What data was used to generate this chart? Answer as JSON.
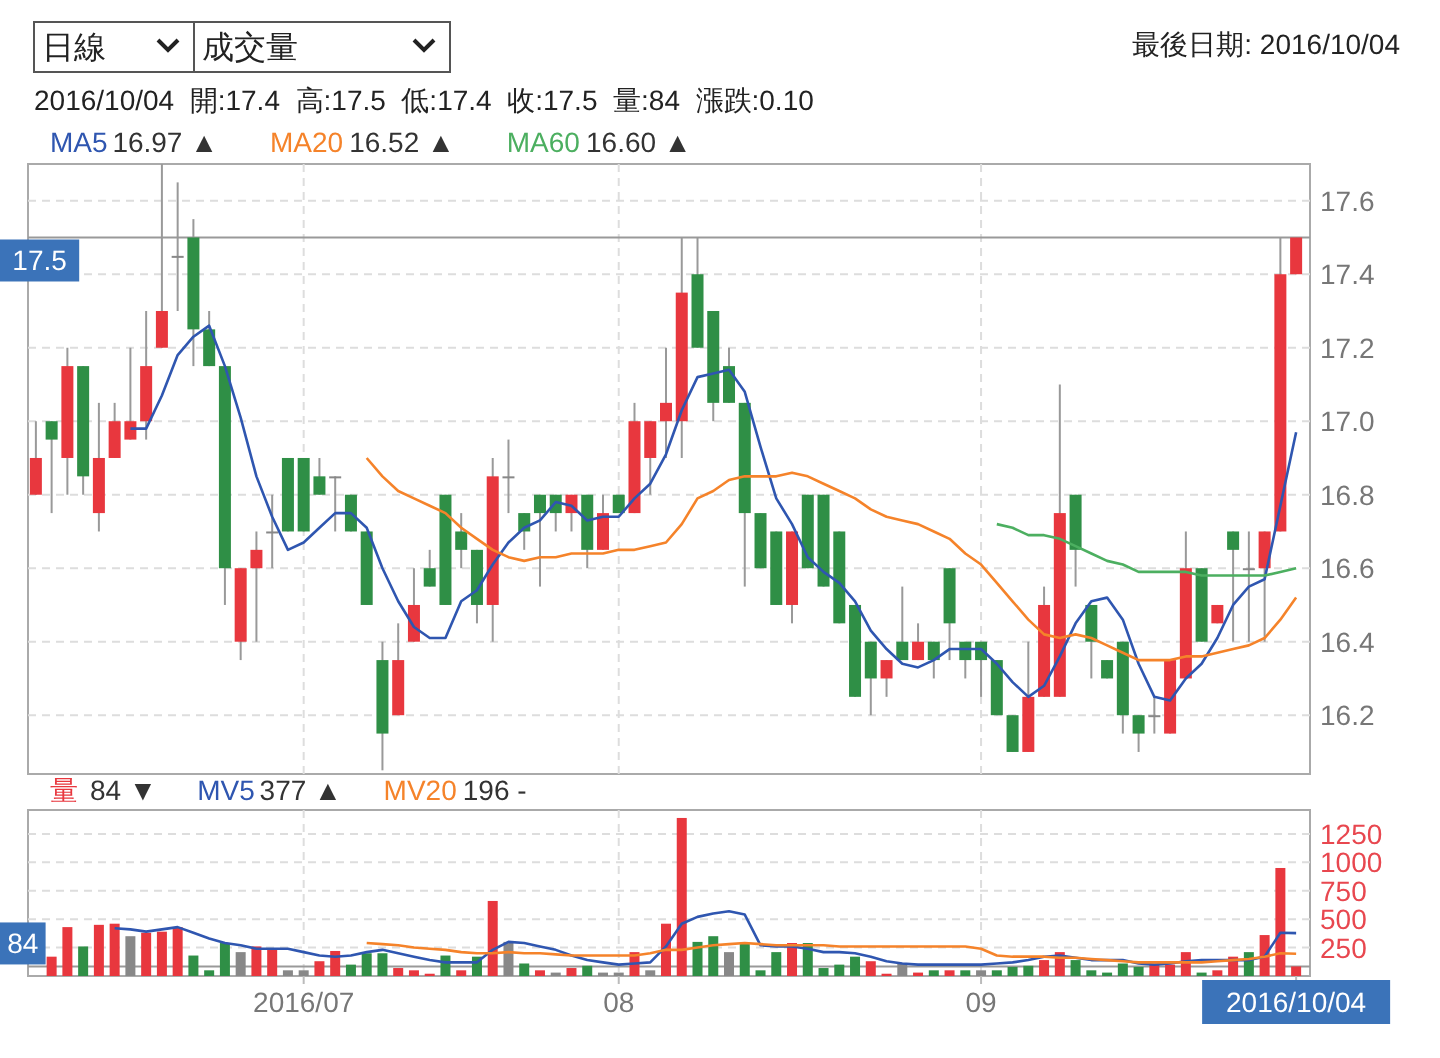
{
  "chart_data": [
    {
      "type": "candlestick",
      "categories": [
        null,
        null,
        null,
        null,
        null,
        null,
        null,
        null,
        null,
        null,
        null,
        null,
        null,
        null,
        null,
        null,
        null,
        "2016/07",
        null,
        null,
        null,
        null,
        null,
        null,
        null,
        null,
        null,
        null,
        null,
        null,
        null,
        null,
        null,
        null,
        null,
        null,
        null,
        "08",
        null,
        null,
        null,
        null,
        null,
        null,
        null,
        null,
        null,
        null,
        null,
        null,
        null,
        null,
        null,
        null,
        null,
        null,
        null,
        null,
        null,
        null,
        "09",
        null,
        null,
        null,
        null,
        null,
        null,
        null,
        null,
        null,
        null,
        null,
        null,
        null,
        null,
        null,
        null,
        null,
        null,
        null,
        "2016/10/04"
      ],
      "ohlc": [
        [
          16.8,
          17.0,
          16.8,
          16.9
        ],
        [
          17.0,
          17.0,
          16.75,
          16.95
        ],
        [
          16.9,
          17.2,
          16.8,
          17.15
        ],
        [
          17.15,
          17.15,
          16.8,
          16.85
        ],
        [
          16.75,
          17.05,
          16.7,
          16.9
        ],
        [
          16.9,
          17.05,
          16.9,
          17.0
        ],
        [
          16.95,
          17.2,
          16.95,
          17.0
        ],
        [
          17.0,
          17.3,
          16.95,
          17.15
        ],
        [
          17.2,
          17.7,
          17.2,
          17.3
        ],
        [
          17.45,
          17.65,
          17.3,
          17.45
        ],
        [
          17.5,
          17.55,
          17.15,
          17.25
        ],
        [
          17.25,
          17.3,
          17.15,
          17.15
        ],
        [
          17.15,
          17.15,
          16.5,
          16.6
        ],
        [
          16.4,
          16.6,
          16.35,
          16.6
        ],
        [
          16.6,
          16.7,
          16.4,
          16.65
        ],
        [
          16.7,
          16.8,
          16.6,
          16.7
        ],
        [
          16.9,
          16.9,
          16.7,
          16.7
        ],
        [
          16.9,
          16.9,
          16.7,
          16.7
        ],
        [
          16.85,
          16.9,
          16.8,
          16.8
        ],
        [
          16.85,
          16.85,
          16.7,
          16.85
        ],
        [
          16.8,
          16.8,
          16.7,
          16.7
        ],
        [
          16.7,
          16.7,
          16.5,
          16.5
        ],
        [
          16.35,
          16.4,
          16.05,
          16.15
        ],
        [
          16.2,
          16.45,
          16.2,
          16.35
        ],
        [
          16.4,
          16.6,
          16.4,
          16.5
        ],
        [
          16.6,
          16.65,
          16.55,
          16.55
        ],
        [
          16.8,
          16.8,
          16.5,
          16.5
        ],
        [
          16.7,
          16.75,
          16.6,
          16.65
        ],
        [
          16.65,
          16.65,
          16.45,
          16.5
        ],
        [
          16.5,
          16.9,
          16.4,
          16.85
        ],
        [
          16.85,
          16.95,
          16.75,
          16.85
        ],
        [
          16.75,
          16.75,
          16.65,
          16.7
        ],
        [
          16.8,
          16.8,
          16.55,
          16.75
        ],
        [
          16.8,
          16.8,
          16.7,
          16.75
        ],
        [
          16.75,
          16.8,
          16.7,
          16.8
        ],
        [
          16.8,
          16.8,
          16.6,
          16.65
        ],
        [
          16.65,
          16.8,
          16.65,
          16.75
        ],
        [
          16.8,
          16.8,
          16.75,
          16.75
        ],
        [
          16.75,
          17.05,
          16.75,
          17.0
        ],
        [
          16.9,
          17.0,
          16.8,
          17.0
        ],
        [
          17.0,
          17.2,
          16.9,
          17.05
        ],
        [
          17.0,
          17.5,
          16.9,
          17.35
        ],
        [
          17.4,
          17.5,
          17.2,
          17.2
        ],
        [
          17.3,
          17.3,
          17.0,
          17.05
        ],
        [
          17.15,
          17.2,
          17.05,
          17.05
        ],
        [
          17.05,
          17.05,
          16.55,
          16.75
        ],
        [
          16.75,
          16.75,
          16.6,
          16.6
        ],
        [
          16.7,
          16.7,
          16.5,
          16.5
        ],
        [
          16.5,
          16.7,
          16.45,
          16.7
        ],
        [
          16.8,
          16.8,
          16.6,
          16.6
        ],
        [
          16.8,
          16.8,
          16.55,
          16.55
        ],
        [
          16.7,
          16.7,
          16.45,
          16.45
        ],
        [
          16.5,
          16.5,
          16.25,
          16.25
        ],
        [
          16.4,
          16.4,
          16.2,
          16.3
        ],
        [
          16.3,
          16.35,
          16.25,
          16.35
        ],
        [
          16.4,
          16.55,
          16.35,
          16.35
        ],
        [
          16.35,
          16.45,
          16.35,
          16.4
        ],
        [
          16.4,
          16.4,
          16.3,
          16.35
        ],
        [
          16.6,
          16.6,
          16.35,
          16.45
        ],
        [
          16.4,
          16.4,
          16.3,
          16.35
        ],
        [
          16.4,
          16.4,
          16.25,
          16.35
        ],
        [
          16.35,
          16.35,
          16.2,
          16.2
        ],
        [
          16.2,
          16.2,
          16.1,
          16.1
        ],
        [
          16.1,
          16.4,
          16.1,
          16.25
        ],
        [
          16.25,
          16.55,
          16.25,
          16.5
        ],
        [
          16.25,
          17.1,
          16.25,
          16.75
        ],
        [
          16.8,
          16.8,
          16.55,
          16.65
        ],
        [
          16.5,
          16.5,
          16.3,
          16.4
        ],
        [
          16.35,
          16.35,
          16.3,
          16.3
        ],
        [
          16.4,
          16.4,
          16.15,
          16.2
        ],
        [
          16.2,
          16.2,
          16.1,
          16.15
        ],
        [
          16.2,
          16.25,
          16.15,
          16.2
        ],
        [
          16.15,
          16.35,
          16.15,
          16.35
        ],
        [
          16.3,
          16.7,
          16.3,
          16.6
        ],
        [
          16.6,
          16.6,
          16.4,
          16.4
        ],
        [
          16.45,
          16.5,
          16.45,
          16.5
        ],
        [
          16.7,
          16.7,
          16.4,
          16.65
        ],
        [
          16.6,
          16.7,
          16.4,
          16.6
        ],
        [
          16.6,
          16.7,
          16.4,
          16.7
        ],
        [
          16.7,
          17.5,
          16.7,
          17.4
        ],
        [
          17.4,
          17.5,
          17.4,
          17.5
        ]
      ],
      "colors": [
        "#e8373e",
        "#2f8f46",
        "#e8373e",
        "#2f8f46",
        "#e8373e",
        "#e8373e",
        "#e8373e",
        "#e8373e",
        "#e8373e",
        "#888888",
        "#2f8f46",
        "#2f8f46",
        "#2f8f46",
        "#e8373e",
        "#e8373e",
        "#888888",
        "#2f8f46",
        "#2f8f46",
        "#2f8f46",
        "#888888",
        "#2f8f46",
        "#2f8f46",
        "#2f8f46",
        "#e8373e",
        "#e8373e",
        "#2f8f46",
        "#2f8f46",
        "#2f8f46",
        "#2f8f46",
        "#e8373e",
        "#888888",
        "#2f8f46",
        "#2f8f46",
        "#2f8f46",
        "#e8373e",
        "#2f8f46",
        "#e8373e",
        "#2f8f46",
        "#e8373e",
        "#e8373e",
        "#e8373e",
        "#e8373e",
        "#2f8f46",
        "#2f8f46",
        "#2f8f46",
        "#2f8f46",
        "#2f8f46",
        "#2f8f46",
        "#e8373e",
        "#2f8f46",
        "#2f8f46",
        "#2f8f46",
        "#2f8f46",
        "#2f8f46",
        "#e8373e",
        "#2f8f46",
        "#e8373e",
        "#2f8f46",
        "#2f8f46",
        "#2f8f46",
        "#2f8f46",
        "#2f8f46",
        "#2f8f46",
        "#e8373e",
        "#e8373e",
        "#e8373e",
        "#2f8f46",
        "#2f8f46",
        "#2f8f46",
        "#2f8f46",
        "#2f8f46",
        "#888888",
        "#e8373e",
        "#e8373e",
        "#2f8f46",
        "#e8373e",
        "#2f8f46",
        "#888888",
        "#e8373e",
        "#e8373e",
        "#e8373e"
      ],
      "series": [
        {
          "name": "MA5",
          "type": "line",
          "color": "#2f56b0",
          "values": [
            null,
            null,
            null,
            null,
            null,
            null,
            16.98,
            16.98,
            17.07,
            17.18,
            17.23,
            17.26,
            17.15,
            17.01,
            16.85,
            16.74,
            16.65,
            16.67,
            16.71,
            16.75,
            16.75,
            16.71,
            16.6,
            16.51,
            16.44,
            16.41,
            16.41,
            16.51,
            16.54,
            16.61,
            16.67,
            16.71,
            16.73,
            16.78,
            16.77,
            16.73,
            16.74,
            16.74,
            16.79,
            16.83,
            16.91,
            17.03,
            17.12,
            17.13,
            17.14,
            17.08,
            16.93,
            16.79,
            16.72,
            16.63,
            16.59,
            16.56,
            16.51,
            16.43,
            16.38,
            16.34,
            16.33,
            16.35,
            16.38,
            16.38,
            16.38,
            16.34,
            16.29,
            16.25,
            16.28,
            16.36,
            16.45,
            16.51,
            16.52,
            16.46,
            16.34,
            16.25,
            16.24,
            16.3,
            16.34,
            16.41,
            16.5,
            16.55,
            16.57,
            16.77,
            16.97
          ]
        },
        {
          "name": "MA20",
          "type": "line",
          "color": "#f5832a",
          "values": [
            null,
            null,
            null,
            null,
            null,
            null,
            null,
            null,
            null,
            null,
            null,
            null,
            null,
            null,
            null,
            null,
            null,
            null,
            null,
            null,
            null,
            16.9,
            16.85,
            16.81,
            16.79,
            16.77,
            16.75,
            16.71,
            16.68,
            16.65,
            16.63,
            16.62,
            16.63,
            16.63,
            16.64,
            16.64,
            16.64,
            16.65,
            16.65,
            16.66,
            16.67,
            16.72,
            16.79,
            16.81,
            16.84,
            16.85,
            16.85,
            16.85,
            16.86,
            16.85,
            16.83,
            16.81,
            16.79,
            16.76,
            16.74,
            16.73,
            16.72,
            16.7,
            16.68,
            16.64,
            16.61,
            16.56,
            16.51,
            16.46,
            16.42,
            16.41,
            16.42,
            16.41,
            16.39,
            16.37,
            16.35,
            16.35,
            16.35,
            16.36,
            16.36,
            16.37,
            16.38,
            16.39,
            16.41,
            16.46,
            16.52
          ]
        },
        {
          "name": "MA60",
          "type": "line",
          "color": "#4caf60",
          "values": [
            null,
            null,
            null,
            null,
            null,
            null,
            null,
            null,
            null,
            null,
            null,
            null,
            null,
            null,
            null,
            null,
            null,
            null,
            null,
            null,
            null,
            null,
            null,
            null,
            null,
            null,
            null,
            null,
            null,
            null,
            null,
            null,
            null,
            null,
            null,
            null,
            null,
            null,
            null,
            null,
            null,
            null,
            null,
            null,
            null,
            null,
            null,
            null,
            null,
            null,
            null,
            null,
            null,
            null,
            null,
            null,
            null,
            null,
            null,
            null,
            null,
            16.72,
            16.71,
            16.69,
            16.69,
            16.68,
            16.66,
            16.64,
            16.62,
            16.61,
            16.59,
            16.59,
            16.59,
            16.59,
            16.58,
            16.58,
            16.58,
            16.58,
            16.58,
            16.59,
            16.6
          ]
        }
      ],
      "ylim": [
        16.04,
        17.7
      ],
      "yticks": [
        16.2,
        16.4,
        16.6,
        16.8,
        {
          "value": 17,
          "label": "17.0"
        },
        17.2,
        17.4,
        17.6
      ],
      "ref_lines": [
        {
          "axis": "y",
          "value": 17.5,
          "label": "17.5"
        }
      ],
      "grid": true,
      "legend": "top left",
      "tick_labels": "y",
      "annotations": [
        "日線",
        "成交量",
        "最後日期: 2016/10/04",
        "2016/10/04  開:17.4  高:17.5  低:17.4  收:17.5  量:84  漲跌:0.10",
        "16.97 ▲",
        "16.52 ▲",
        "16.60 ▲"
      ]
    },
    {
      "type": "bar",
      "categories": [
        null,
        null,
        null,
        null,
        null,
        null,
        null,
        null,
        null,
        null,
        null,
        null,
        null,
        null,
        null,
        null,
        null,
        "2016/07",
        null,
        null,
        null,
        null,
        null,
        null,
        null,
        null,
        null,
        null,
        null,
        null,
        null,
        null,
        null,
        null,
        null,
        null,
        null,
        "08",
        null,
        null,
        null,
        null,
        null,
        null,
        null,
        null,
        null,
        null,
        null,
        null,
        null,
        null,
        null,
        null,
        null,
        null,
        null,
        null,
        null,
        null,
        "09",
        null,
        null,
        null,
        null,
        null,
        null,
        null,
        null,
        null,
        null,
        null,
        null,
        null,
        null,
        null,
        null,
        null,
        null,
        null,
        "2016/10/04"
      ],
      "series": [
        {
          "name": "量",
          "values": [
            null,
            170,
            430,
            260,
            450,
            460,
            350,
            380,
            390,
            430,
            180,
            50,
            290,
            210,
            260,
            230,
            50,
            50,
            130,
            220,
            100,
            200,
            200,
            70,
            50,
            20,
            180,
            50,
            170,
            660,
            300,
            110,
            50,
            30,
            70,
            90,
            30,
            30,
            210,
            50,
            460,
            1390,
            300,
            350,
            210,
            290,
            50,
            210,
            290,
            290,
            70,
            100,
            170,
            130,
            20,
            110,
            30,
            50,
            50,
            50,
            50,
            50,
            80,
            90,
            140,
            210,
            140,
            50,
            30,
            110,
            80,
            100,
            100,
            210,
            30,
            50,
            170,
            210,
            360,
            950,
            84
          ],
          "colors": [
            null,
            "#e8373e",
            "#e8373e",
            "#2f8f46",
            "#e8373e",
            "#e8373e",
            "#888888",
            "#e8373e",
            "#e8373e",
            "#e8373e",
            "#2f8f46",
            "#2f8f46",
            "#2f8f46",
            "#888888",
            "#e8373e",
            "#e8373e",
            "#888888",
            "#888888",
            "#e8373e",
            "#e8373e",
            "#2f8f46",
            "#2f8f46",
            "#2f8f46",
            "#e8373e",
            "#e8373e",
            "#e8373e",
            "#2f8f46",
            "#e8373e",
            "#2f8f46",
            "#e8373e",
            "#888888",
            "#2f8f46",
            "#e8373e",
            "#888888",
            "#e8373e",
            "#2f8f46",
            "#888888",
            "#888888",
            "#e8373e",
            "#888888",
            "#e8373e",
            "#e8373e",
            "#2f8f46",
            "#2f8f46",
            "#888888",
            "#2f8f46",
            "#2f8f46",
            "#2f8f46",
            "#e8373e",
            "#2f8f46",
            "#2f8f46",
            "#2f8f46",
            "#2f8f46",
            "#e8373e",
            "#e8373e",
            "#888888",
            "#e8373e",
            "#2f8f46",
            "#e8373e",
            "#2f8f46",
            "#888888",
            "#2f8f46",
            "#2f8f46",
            "#2f8f46",
            "#e8373e",
            "#e8373e",
            "#2f8f46",
            "#2f8f46",
            "#2f8f46",
            "#2f8f46",
            "#2f8f46",
            "#e8373e",
            "#e8373e",
            "#e8373e",
            "#2f8f46",
            "#e8373e",
            "#e8373e",
            "#2f8f46",
            "#e8373e",
            "#e8373e",
            "#e8373e"
          ]
        },
        {
          "name": "MV5",
          "type": "line",
          "color": "#2f56b0",
          "values": [
            null,
            null,
            null,
            null,
            null,
            420,
            410,
            390,
            410,
            430,
            380,
            330,
            290,
            270,
            240,
            240,
            240,
            210,
            180,
            170,
            180,
            210,
            230,
            200,
            170,
            140,
            120,
            120,
            120,
            230,
            300,
            290,
            260,
            230,
            180,
            140,
            120,
            100,
            110,
            120,
            260,
            460,
            520,
            550,
            570,
            540,
            270,
            260,
            260,
            240,
            210,
            210,
            200,
            170,
            130,
            110,
            100,
            100,
            100,
            100,
            100,
            110,
            120,
            140,
            170,
            180,
            160,
            140,
            140,
            140,
            110,
            100,
            110,
            130,
            140,
            140,
            140,
            140,
            170,
            380,
            377
          ]
        },
        {
          "name": "MV20",
          "type": "line",
          "color": "#f5832a",
          "values": [
            null,
            null,
            null,
            null,
            null,
            null,
            null,
            null,
            null,
            null,
            null,
            null,
            null,
            null,
            null,
            null,
            null,
            null,
            null,
            null,
            null,
            290,
            280,
            270,
            250,
            240,
            230,
            210,
            200,
            200,
            210,
            200,
            200,
            190,
            180,
            180,
            180,
            180,
            180,
            200,
            230,
            230,
            250,
            270,
            280,
            290,
            280,
            270,
            270,
            270,
            270,
            260,
            260,
            260,
            260,
            260,
            260,
            260,
            260,
            260,
            240,
            180,
            170,
            170,
            170,
            160,
            160,
            150,
            140,
            130,
            120,
            120,
            120,
            120,
            120,
            130,
            140,
            150,
            170,
            200,
            196
          ]
        }
      ],
      "ylim": [
        0,
        1460
      ],
      "yticks": [
        250,
        500,
        750,
        1000,
        1250
      ],
      "ref_lines": [
        {
          "axis": "y",
          "value": 84,
          "label": "84"
        }
      ],
      "grid": true,
      "legend": "top left",
      "annotations": [
        "84 ▼",
        "377 ▲",
        "196 -"
      ]
    }
  ]
}
